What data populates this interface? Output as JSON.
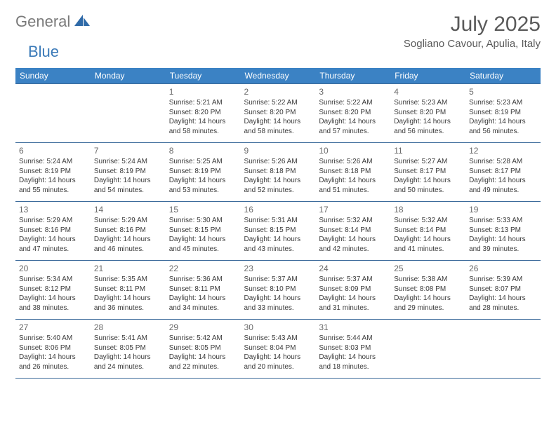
{
  "brand": {
    "text1": "General",
    "text2": "Blue"
  },
  "title": "July 2025",
  "location": "Sogliano Cavour, Apulia, Italy",
  "colors": {
    "header_bg": "#3b82c4",
    "header_text": "#ffffff",
    "border": "#3b6a9a",
    "brand_gray": "#7a7a7a",
    "brand_blue": "#3b7ab8",
    "title_color": "#5a5a5a",
    "cell_text": "#3a3a3a"
  },
  "day_headers": [
    "Sunday",
    "Monday",
    "Tuesday",
    "Wednesday",
    "Thursday",
    "Friday",
    "Saturday"
  ],
  "weeks": [
    [
      null,
      null,
      {
        "n": "1",
        "sunrise": "5:21 AM",
        "sunset": "8:20 PM",
        "day_h": "14",
        "day_m": "58"
      },
      {
        "n": "2",
        "sunrise": "5:22 AM",
        "sunset": "8:20 PM",
        "day_h": "14",
        "day_m": "58"
      },
      {
        "n": "3",
        "sunrise": "5:22 AM",
        "sunset": "8:20 PM",
        "day_h": "14",
        "day_m": "57"
      },
      {
        "n": "4",
        "sunrise": "5:23 AM",
        "sunset": "8:20 PM",
        "day_h": "14",
        "day_m": "56"
      },
      {
        "n": "5",
        "sunrise": "5:23 AM",
        "sunset": "8:19 PM",
        "day_h": "14",
        "day_m": "56"
      }
    ],
    [
      {
        "n": "6",
        "sunrise": "5:24 AM",
        "sunset": "8:19 PM",
        "day_h": "14",
        "day_m": "55"
      },
      {
        "n": "7",
        "sunrise": "5:24 AM",
        "sunset": "8:19 PM",
        "day_h": "14",
        "day_m": "54"
      },
      {
        "n": "8",
        "sunrise": "5:25 AM",
        "sunset": "8:19 PM",
        "day_h": "14",
        "day_m": "53"
      },
      {
        "n": "9",
        "sunrise": "5:26 AM",
        "sunset": "8:18 PM",
        "day_h": "14",
        "day_m": "52"
      },
      {
        "n": "10",
        "sunrise": "5:26 AM",
        "sunset": "8:18 PM",
        "day_h": "14",
        "day_m": "51"
      },
      {
        "n": "11",
        "sunrise": "5:27 AM",
        "sunset": "8:17 PM",
        "day_h": "14",
        "day_m": "50"
      },
      {
        "n": "12",
        "sunrise": "5:28 AM",
        "sunset": "8:17 PM",
        "day_h": "14",
        "day_m": "49"
      }
    ],
    [
      {
        "n": "13",
        "sunrise": "5:29 AM",
        "sunset": "8:16 PM",
        "day_h": "14",
        "day_m": "47"
      },
      {
        "n": "14",
        "sunrise": "5:29 AM",
        "sunset": "8:16 PM",
        "day_h": "14",
        "day_m": "46"
      },
      {
        "n": "15",
        "sunrise": "5:30 AM",
        "sunset": "8:15 PM",
        "day_h": "14",
        "day_m": "45"
      },
      {
        "n": "16",
        "sunrise": "5:31 AM",
        "sunset": "8:15 PM",
        "day_h": "14",
        "day_m": "43"
      },
      {
        "n": "17",
        "sunrise": "5:32 AM",
        "sunset": "8:14 PM",
        "day_h": "14",
        "day_m": "42"
      },
      {
        "n": "18",
        "sunrise": "5:32 AM",
        "sunset": "8:14 PM",
        "day_h": "14",
        "day_m": "41"
      },
      {
        "n": "19",
        "sunrise": "5:33 AM",
        "sunset": "8:13 PM",
        "day_h": "14",
        "day_m": "39"
      }
    ],
    [
      {
        "n": "20",
        "sunrise": "5:34 AM",
        "sunset": "8:12 PM",
        "day_h": "14",
        "day_m": "38"
      },
      {
        "n": "21",
        "sunrise": "5:35 AM",
        "sunset": "8:11 PM",
        "day_h": "14",
        "day_m": "36"
      },
      {
        "n": "22",
        "sunrise": "5:36 AM",
        "sunset": "8:11 PM",
        "day_h": "14",
        "day_m": "34"
      },
      {
        "n": "23",
        "sunrise": "5:37 AM",
        "sunset": "8:10 PM",
        "day_h": "14",
        "day_m": "33"
      },
      {
        "n": "24",
        "sunrise": "5:37 AM",
        "sunset": "8:09 PM",
        "day_h": "14",
        "day_m": "31"
      },
      {
        "n": "25",
        "sunrise": "5:38 AM",
        "sunset": "8:08 PM",
        "day_h": "14",
        "day_m": "29"
      },
      {
        "n": "26",
        "sunrise": "5:39 AM",
        "sunset": "8:07 PM",
        "day_h": "14",
        "day_m": "28"
      }
    ],
    [
      {
        "n": "27",
        "sunrise": "5:40 AM",
        "sunset": "8:06 PM",
        "day_h": "14",
        "day_m": "26"
      },
      {
        "n": "28",
        "sunrise": "5:41 AM",
        "sunset": "8:05 PM",
        "day_h": "14",
        "day_m": "24"
      },
      {
        "n": "29",
        "sunrise": "5:42 AM",
        "sunset": "8:05 PM",
        "day_h": "14",
        "day_m": "22"
      },
      {
        "n": "30",
        "sunrise": "5:43 AM",
        "sunset": "8:04 PM",
        "day_h": "14",
        "day_m": "20"
      },
      {
        "n": "31",
        "sunrise": "5:44 AM",
        "sunset": "8:03 PM",
        "day_h": "14",
        "day_m": "18"
      },
      null,
      null
    ]
  ],
  "labels": {
    "sunrise_prefix": "Sunrise: ",
    "sunset_prefix": "Sunset: ",
    "daylight_prefix": "Daylight: ",
    "hours_word": " hours",
    "and_word": "and ",
    "minutes_word": " minutes."
  }
}
